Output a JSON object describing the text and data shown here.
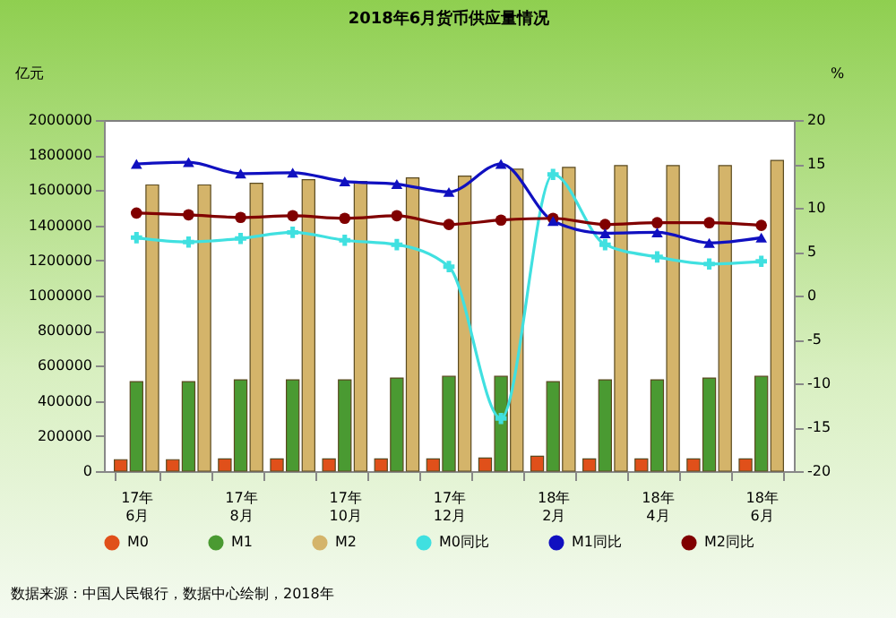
{
  "chart_data": {
    "type": "bar",
    "title": "2018年6月货币供应量情况",
    "ylabel": "亿元",
    "y2label": "%",
    "categories": [
      "17年\n6月",
      null,
      "17年\n8月",
      null,
      "17年\n10月",
      null,
      "17年\n12月",
      null,
      "18年\n2月",
      null,
      "18年\n4月",
      null,
      "18年\n6月"
    ],
    "series": [
      {
        "name": "M0",
        "color": "#e0501a",
        "values": [
          65000,
          65000,
          70000,
          70000,
          70000,
          70000,
          70000,
          75000,
          85000,
          70000,
          70000,
          70000,
          70000
        ]
      },
      {
        "name": "M1",
        "color": "#4a9a32",
        "values": [
          510000,
          510000,
          520000,
          520000,
          520000,
          530000,
          540000,
          540000,
          510000,
          520000,
          520000,
          530000,
          540000
        ]
      },
      {
        "name": "M2",
        "color": "#d4b46a",
        "values": [
          1630000,
          1630000,
          1640000,
          1660000,
          1650000,
          1670000,
          1680000,
          1720000,
          1730000,
          1740000,
          1740000,
          1740000,
          1770000
        ]
      },
      {
        "name": "M0同比",
        "type": "line",
        "axis": "y2",
        "marker": "cross",
        "color": "#40e0e0",
        "values": [
          6.6,
          6.1,
          6.5,
          7.2,
          6.3,
          5.8,
          3.3,
          -14.0,
          13.8,
          5.8,
          4.4,
          3.6,
          3.9
        ]
      },
      {
        "name": "M1同比",
        "type": "line",
        "axis": "y2",
        "marker": "triangle",
        "color": "#1010c0",
        "values": [
          15.0,
          15.2,
          13.9,
          14.0,
          13.0,
          12.7,
          11.8,
          15.0,
          8.5,
          7.1,
          7.2,
          6.0,
          6.6
        ]
      },
      {
        "name": "M2同比",
        "type": "line",
        "axis": "y2",
        "marker": "circle",
        "color": "#800000",
        "values": [
          9.4,
          9.2,
          8.9,
          9.1,
          8.8,
          9.1,
          8.1,
          8.6,
          8.8,
          8.1,
          8.3,
          8.3,
          8.0
        ]
      }
    ],
    "ylim": [
      0,
      2000000
    ],
    "yticks": [
      0,
      200000,
      400000,
      600000,
      800000,
      1000000,
      1200000,
      1400000,
      1600000,
      1800000,
      2000000
    ],
    "y2lim": [
      -20,
      20
    ],
    "y2ticks": [
      -20,
      -15,
      -10,
      -5,
      0,
      5,
      10,
      15,
      20
    ],
    "legend": "bottom",
    "grid": false,
    "annotations": [
      "数据来源：中国人民银行，数据中心绘制，2018年"
    ]
  }
}
